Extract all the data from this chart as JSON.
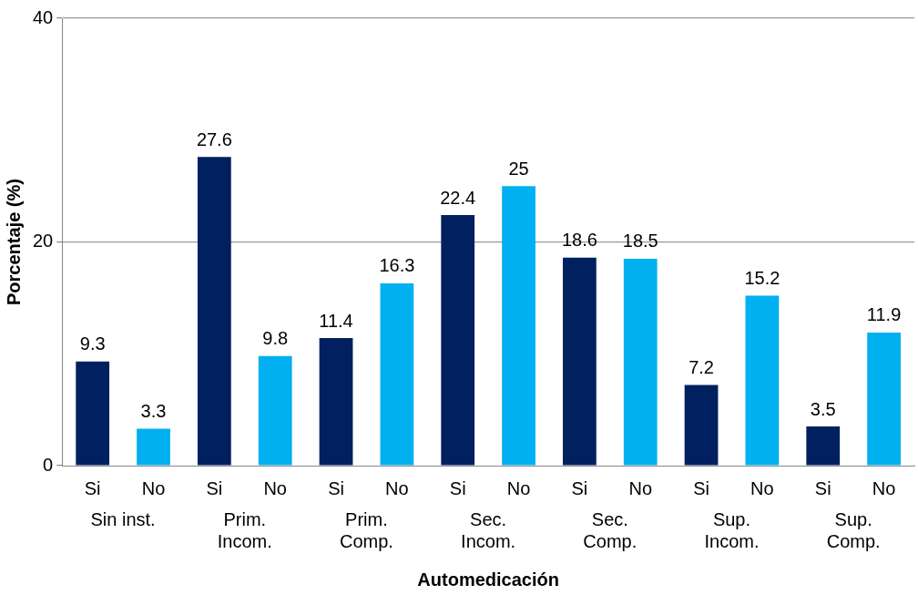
{
  "chart_data": {
    "type": "bar",
    "xlabel": "Automedicación",
    "ylabel": "Porcentaje (%)",
    "categories": [
      "Si",
      "No",
      "Si",
      "No",
      "Si",
      "No",
      "Si",
      "No",
      "Si",
      "No",
      "Si",
      "No",
      "Si",
      "No"
    ],
    "values": [
      9.3,
      3.3,
      27.6,
      9.8,
      11.4,
      16.3,
      22.4,
      25,
      18.6,
      18.5,
      7.2,
      15.2,
      3.5,
      11.9
    ],
    "colors": [
      "#002060",
      "#00b0f0",
      "#002060",
      "#00b0f0",
      "#002060",
      "#00b0f0",
      "#002060",
      "#00b0f0",
      "#002060",
      "#00b0f0",
      "#002060",
      "#00b0f0",
      "#002060",
      "#00b0f0"
    ],
    "annotations": [
      "Sin inst.",
      "Prim.\nIncom.",
      "Prim.\nComp.",
      "Sec.\nIncom.",
      "Sec.\nComp.",
      "Sup.\nIncom.",
      "Sup.\nComp."
    ],
    "ylim": [
      0,
      40
    ],
    "yticks": [
      0,
      20,
      40
    ],
    "grid": "y",
    "data_labels": true,
    "legend": false
  }
}
